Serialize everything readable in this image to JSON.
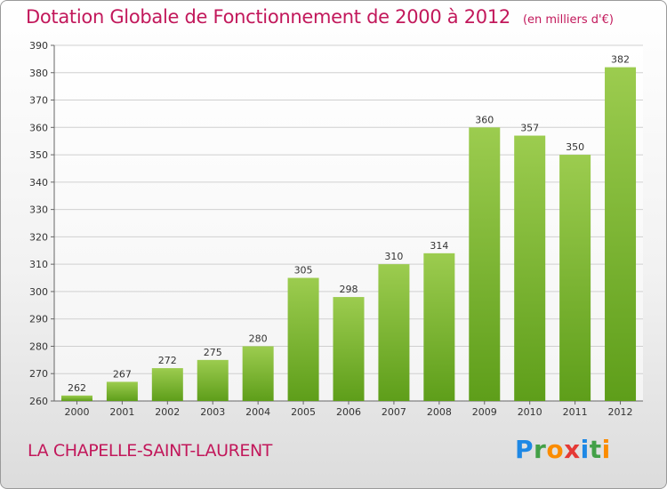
{
  "header": {
    "title": "Dotation Globale de Fonctionnement de 2000 à 2012",
    "unit": "(en milliers d'€)"
  },
  "footer": {
    "commune": "LA CHAPELLE-SAINT-LAURENT",
    "brand": [
      "P",
      "r",
      "o",
      "x",
      "i",
      "t",
      "i"
    ],
    "brand_colors": [
      "#1e88e5",
      "#43a047",
      "#fb8c00",
      "#e53935",
      "#1e88e5",
      "#43a047",
      "#fb8c00"
    ]
  },
  "chart_data": {
    "type": "bar",
    "title": "Dotation Globale de Fonctionnement de 2000 à 2012",
    "subtitle": "(en milliers d'€)",
    "categories": [
      "2000",
      "2001",
      "2002",
      "2003",
      "2004",
      "2005",
      "2006",
      "2007",
      "2008",
      "2009",
      "2010",
      "2011",
      "2012"
    ],
    "values": [
      262,
      267,
      272,
      275,
      280,
      305,
      298,
      310,
      314,
      360,
      357,
      350,
      382
    ],
    "ylim": [
      260,
      390
    ],
    "yticks": [
      260,
      270,
      280,
      290,
      300,
      310,
      320,
      330,
      340,
      350,
      360,
      370,
      380,
      390
    ],
    "grid": true,
    "bar_color_top": "#9ccc4f",
    "bar_color_bottom": "#5e9e1a",
    "text_color": "#333333"
  }
}
